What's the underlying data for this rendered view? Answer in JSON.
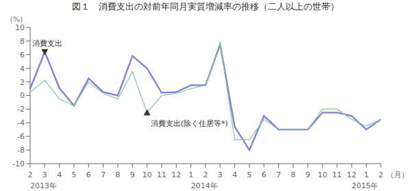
{
  "chart_data": {
    "type": "line",
    "title": "図１　消費支出の対前年同月実質増減率の推移（二人以上の世帯）",
    "ylabel": "(%)",
    "xlabel": "（月）",
    "categories": [
      "2",
      "3",
      "4",
      "5",
      "6",
      "7",
      "8",
      "9",
      "10",
      "11",
      "12",
      "1",
      "2",
      "3",
      "4",
      "5",
      "6",
      "7",
      "8",
      "9",
      "10",
      "11",
      "12",
      "1",
      "2"
    ],
    "year_labels": [
      {
        "label": "2013年",
        "index": 0
      },
      {
        "label": "2014年",
        "index": 11
      },
      {
        "label": "2015年",
        "index": 22
      }
    ],
    "series": [
      {
        "name": "消費支出",
        "color": "#8884d8",
        "values": [
          1.0,
          6.4,
          1.1,
          -1.5,
          2.5,
          0.5,
          0.0,
          5.8,
          4.0,
          0.4,
          0.5,
          1.5,
          1.5,
          7.5,
          -4.6,
          -8.0,
          -3.0,
          -5.0,
          -5.0,
          -5.0,
          -2.5,
          -2.5,
          -3.0,
          -5.0,
          -3.5
        ]
      },
      {
        "name": "消費支出(除く住居等*)",
        "color": "#82ca9d",
        "values": [
          0.5,
          2.2,
          -0.5,
          -1.5,
          2.0,
          0.3,
          -0.5,
          3.5,
          -2.5,
          0.0,
          0.3,
          1.0,
          1.5,
          7.8,
          -6.5,
          -6.5,
          -3.5,
          -5.0,
          -5.0,
          -5.0,
          -2.0,
          -2.0,
          -3.5,
          -4.5,
          -3.5
        ]
      }
    ],
    "annotations": [
      {
        "text": "消費支出",
        "series": 0,
        "index": 1,
        "marker": "triangle-down"
      },
      {
        "text": "消費支出(除く住居等*)",
        "series": 1,
        "index": 8,
        "marker": "triangle-up"
      }
    ],
    "ylim": [
      -10,
      10
    ],
    "yticks": [
      -10,
      -8,
      -6,
      -4,
      -2,
      0,
      2,
      4,
      6,
      8,
      10
    ],
    "grid": false
  }
}
